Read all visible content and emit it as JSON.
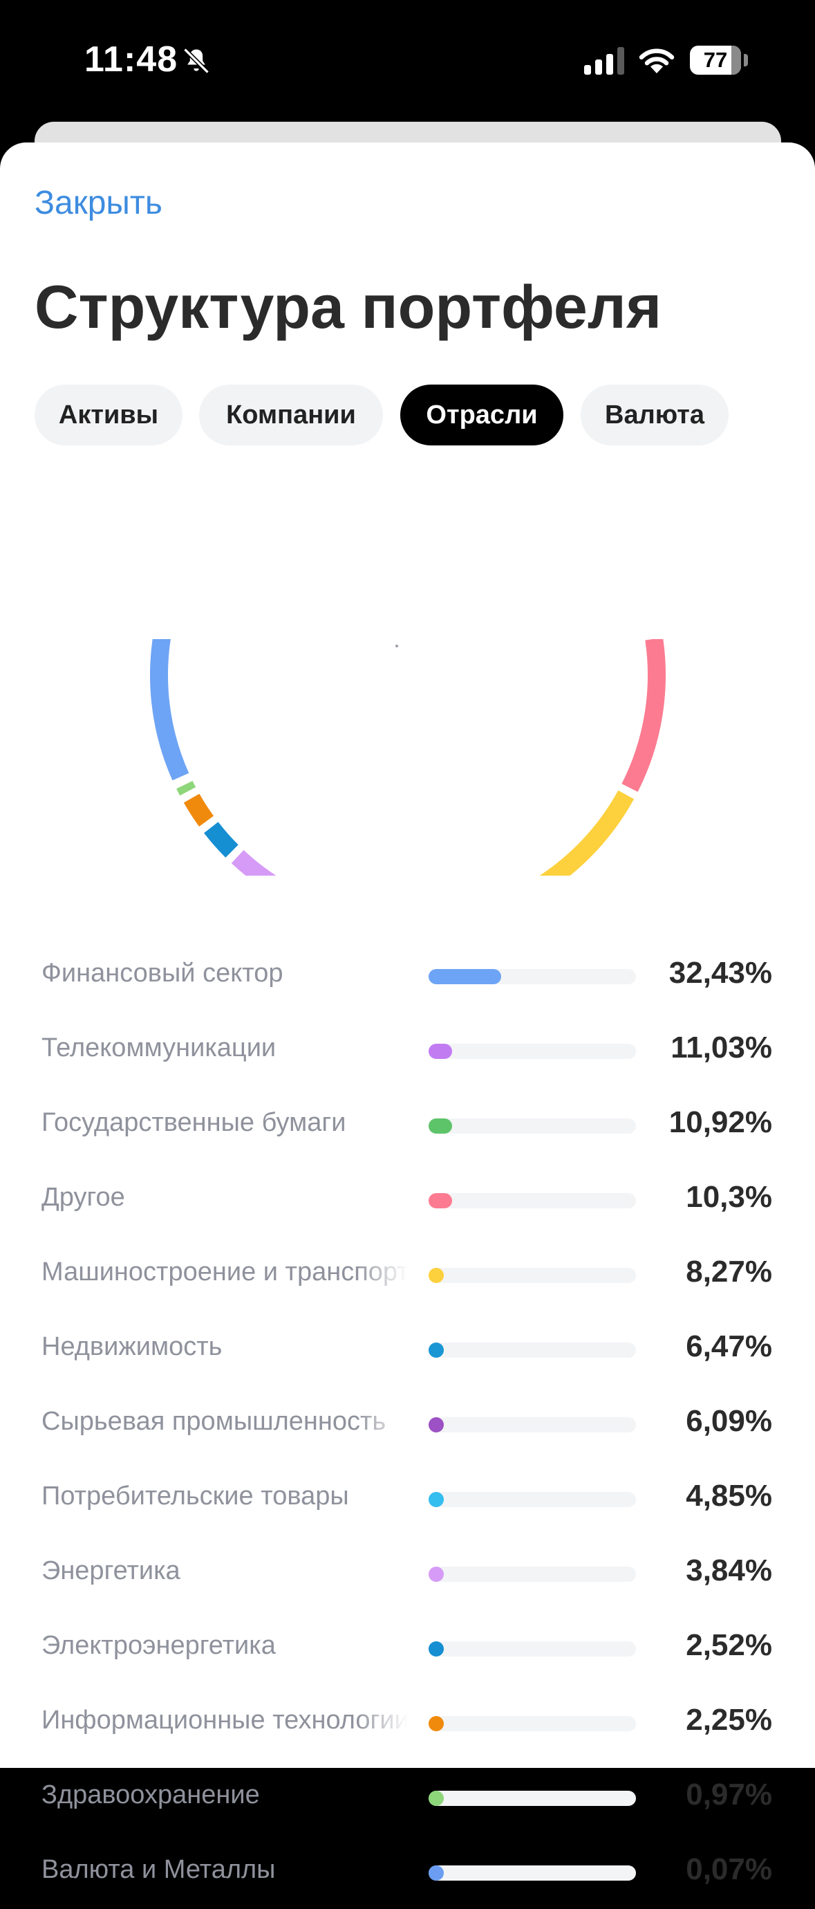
{
  "status_bar": {
    "time": "11:48",
    "icons": [
      "bell-slash-icon",
      "cellular-signal-icon",
      "wifi-icon"
    ],
    "battery": "77"
  },
  "header": {
    "close_label": "Закрыть",
    "title": "Структура портфеля"
  },
  "tabs": [
    {
      "label": "Активы",
      "active": false
    },
    {
      "label": "Компании",
      "active": false
    },
    {
      "label": "Отрасли",
      "active": true
    },
    {
      "label": "Валюта",
      "active": false
    }
  ],
  "chart_data": {
    "type": "pie",
    "style": "donut-ring-partial-view",
    "series": [
      {
        "label": "Финансовый сектор",
        "value": 32.43,
        "value_text": "32,43%",
        "color": "#6ea4f5"
      },
      {
        "label": "Телекоммуникации",
        "value": 11.03,
        "value_text": "11,03%",
        "color": "#c27cf2"
      },
      {
        "label": "Государственные бумаги",
        "value": 10.92,
        "value_text": "10,92%",
        "color": "#5ec46a"
      },
      {
        "label": "Другое",
        "value": 10.3,
        "value_text": "10,3%",
        "color": "#fc7b90"
      },
      {
        "label": "Машиностроение и транспорт",
        "value": 8.27,
        "value_text": "8,27%",
        "color": "#fdd13d"
      },
      {
        "label": "Недвижимость",
        "value": 6.47,
        "value_text": "6,47%",
        "color": "#1a96d4"
      },
      {
        "label": "Сырьевая промышленность",
        "value": 6.09,
        "value_text": "6,09%",
        "color": "#9c51c4"
      },
      {
        "label": "Потребительские товары",
        "value": 4.85,
        "value_text": "4,85%",
        "color": "#34bdef"
      },
      {
        "label": "Энергетика",
        "value": 3.84,
        "value_text": "3,84%",
        "color": "#d69bf7"
      },
      {
        "label": "Электроэнергетика",
        "value": 2.52,
        "value_text": "2,52%",
        "color": "#158ed2"
      },
      {
        "label": "Информационные технологии",
        "value": 2.25,
        "value_text": "2,25%",
        "color": "#f08a0c"
      },
      {
        "label": "Здравоохранение",
        "value": 0.97,
        "value_text": "0,97%",
        "color": "#8ed67a"
      },
      {
        "label": "Валюта и Металлы",
        "value": 0.07,
        "value_text": "0,07%",
        "color": "#6b9df2"
      }
    ]
  }
}
